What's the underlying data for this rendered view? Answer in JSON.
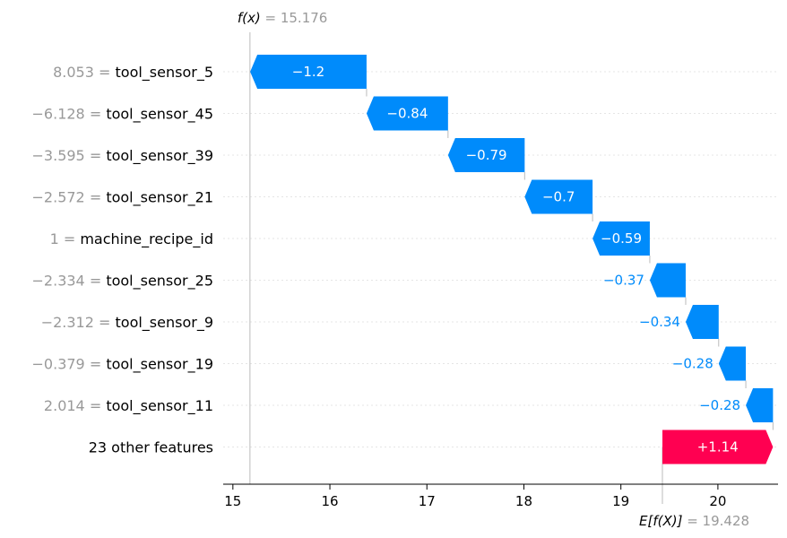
{
  "chart_data": {
    "type": "waterfall",
    "fx_symbol": "f(x)",
    "fx_value": "15.176",
    "efx_symbol": "E[f(X)]",
    "efx_value": "19.428",
    "base_value": 19.428,
    "final_value": 15.176,
    "xlim": [
      14.9,
      20.62
    ],
    "x_ticks": [
      15,
      16,
      17,
      18,
      19,
      20
    ],
    "features": [
      {
        "value_text": "8.053",
        "name": "tool_sensor_5",
        "shap": -1.2,
        "label": "−1.2"
      },
      {
        "value_text": "−6.128",
        "name": "tool_sensor_45",
        "shap": -0.84,
        "label": "−0.84"
      },
      {
        "value_text": "−3.595",
        "name": "tool_sensor_39",
        "shap": -0.79,
        "label": "−0.79"
      },
      {
        "value_text": "−2.572",
        "name": "tool_sensor_21",
        "shap": -0.7,
        "label": "−0.7"
      },
      {
        "value_text": "1",
        "name": "machine_recipe_id",
        "shap": -0.59,
        "label": "−0.59"
      },
      {
        "value_text": "−2.334",
        "name": "tool_sensor_25",
        "shap": -0.37,
        "label": "−0.37"
      },
      {
        "value_text": "−2.312",
        "name": "tool_sensor_9",
        "shap": -0.34,
        "label": "−0.34"
      },
      {
        "value_text": "−0.379",
        "name": "tool_sensor_19",
        "shap": -0.28,
        "label": "−0.28"
      },
      {
        "value_text": "2.014",
        "name": "tool_sensor_11",
        "shap": -0.28,
        "label": "−0.28"
      },
      {
        "value_text": "",
        "name": "23 other features",
        "shap": 1.14,
        "label": "+1.14"
      }
    ],
    "colors": {
      "negative": "#008bfb",
      "positive": "#ff0051",
      "grid": "#e5e5e5",
      "muted": "#999999"
    }
  }
}
